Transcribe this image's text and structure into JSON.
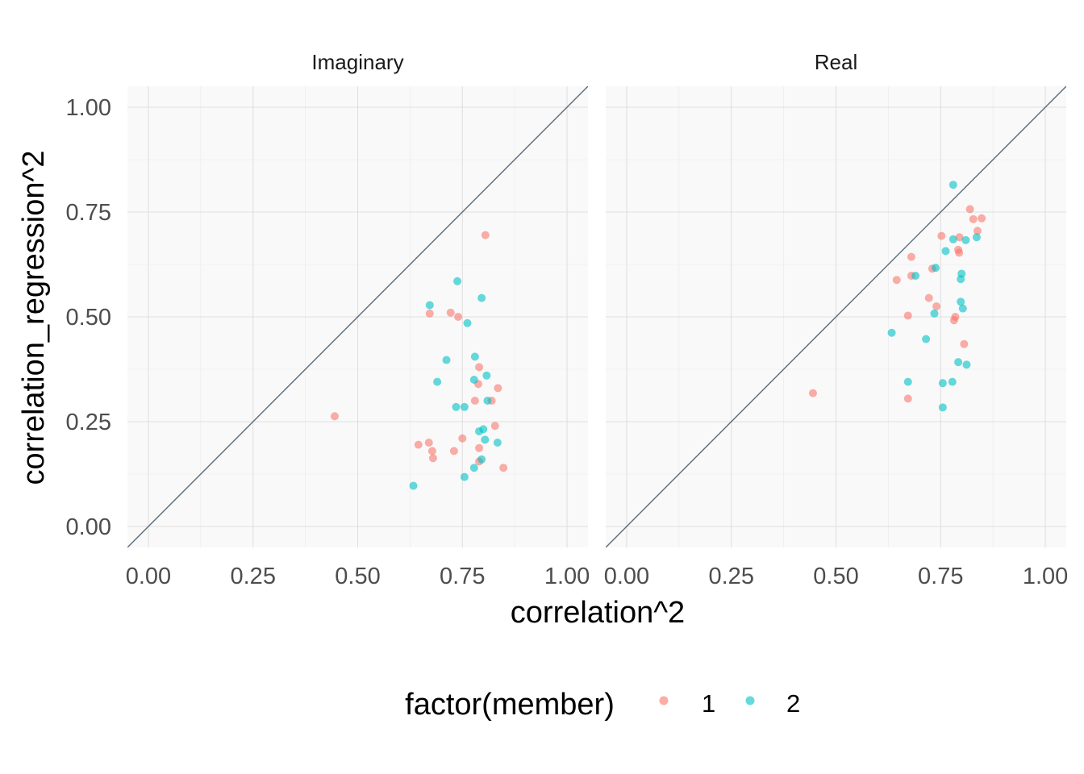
{
  "chart_data": {
    "type": "scatter",
    "xlabel": "correlation^2",
    "ylabel": "correlation_regression^2",
    "xlim": [
      -0.05,
      1.05
    ],
    "ylim": [
      -0.05,
      1.05
    ],
    "x_ticks": [
      0,
      0.25,
      0.5,
      0.75,
      1
    ],
    "y_ticks": [
      0,
      0.25,
      0.5,
      0.75,
      1
    ],
    "x_tick_labels": [
      "0.00",
      "0.25",
      "0.50",
      "0.75",
      "1.00"
    ],
    "y_tick_labels": [
      "0.00",
      "0.25",
      "0.50",
      "0.75",
      "1.00"
    ],
    "grid": true,
    "reference_line": "y = x",
    "legend": {
      "title": "factor(member)",
      "position": "bottom",
      "entries": [
        {
          "label": "1",
          "color": "#F8766D"
        },
        {
          "label": "2",
          "color": "#00BFC4"
        }
      ]
    },
    "facets": [
      {
        "label": "Imaginary",
        "series": [
          {
            "name": "1",
            "color": "#F8766D",
            "points": [
              [
                0.805,
                0.695
              ],
              [
                0.445,
                0.263
              ],
              [
                0.672,
                0.508
              ],
              [
                0.722,
                0.51
              ],
              [
                0.74,
                0.5
              ],
              [
                0.79,
                0.38
              ],
              [
                0.788,
                0.34
              ],
              [
                0.835,
                0.33
              ],
              [
                0.78,
                0.3
              ],
              [
                0.82,
                0.3
              ],
              [
                0.828,
                0.24
              ],
              [
                0.75,
                0.21
              ],
              [
                0.645,
                0.195
              ],
              [
                0.67,
                0.2
              ],
              [
                0.678,
                0.18
              ],
              [
                0.73,
                0.18
              ],
              [
                0.79,
                0.187
              ],
              [
                0.68,
                0.163
              ],
              [
                0.79,
                0.155
              ],
              [
                0.848,
                0.14
              ]
            ]
          },
          {
            "name": "2",
            "color": "#00BFC4",
            "points": [
              [
                0.738,
                0.585
              ],
              [
                0.672,
                0.528
              ],
              [
                0.796,
                0.545
              ],
              [
                0.762,
                0.485
              ],
              [
                0.78,
                0.405
              ],
              [
                0.712,
                0.397
              ],
              [
                0.808,
                0.36
              ],
              [
                0.778,
                0.35
              ],
              [
                0.69,
                0.345
              ],
              [
                0.81,
                0.3
              ],
              [
                0.735,
                0.285
              ],
              [
                0.755,
                0.285
              ],
              [
                0.8,
                0.232
              ],
              [
                0.79,
                0.227
              ],
              [
                0.834,
                0.2
              ],
              [
                0.804,
                0.207
              ],
              [
                0.796,
                0.16
              ],
              [
                0.778,
                0.14
              ],
              [
                0.755,
                0.118
              ],
              [
                0.633,
                0.097
              ]
            ]
          }
        ]
      },
      {
        "label": "Real",
        "series": [
          {
            "name": "1",
            "color": "#F8766D",
            "points": [
              [
                0.82,
                0.757
              ],
              [
                0.828,
                0.733
              ],
              [
                0.848,
                0.735
              ],
              [
                0.838,
                0.705
              ],
              [
                0.752,
                0.693
              ],
              [
                0.795,
                0.69
              ],
              [
                0.792,
                0.66
              ],
              [
                0.794,
                0.653
              ],
              [
                0.68,
                0.643
              ],
              [
                0.73,
                0.615
              ],
              [
                0.68,
                0.598
              ],
              [
                0.645,
                0.588
              ],
              [
                0.722,
                0.545
              ],
              [
                0.74,
                0.525
              ],
              [
                0.672,
                0.503
              ],
              [
                0.785,
                0.5
              ],
              [
                0.782,
                0.492
              ],
              [
                0.806,
                0.435
              ],
              [
                0.445,
                0.318
              ],
              [
                0.672,
                0.305
              ]
            ]
          },
          {
            "name": "2",
            "color": "#00BFC4",
            "points": [
              [
                0.78,
                0.815
              ],
              [
                0.78,
                0.685
              ],
              [
                0.81,
                0.683
              ],
              [
                0.836,
                0.69
              ],
              [
                0.762,
                0.657
              ],
              [
                0.738,
                0.617
              ],
              [
                0.69,
                0.598
              ],
              [
                0.8,
                0.603
              ],
              [
                0.798,
                0.59
              ],
              [
                0.798,
                0.536
              ],
              [
                0.803,
                0.52
              ],
              [
                0.735,
                0.508
              ],
              [
                0.633,
                0.462
              ],
              [
                0.715,
                0.447
              ],
              [
                0.792,
                0.392
              ],
              [
                0.812,
                0.386
              ],
              [
                0.672,
                0.345
              ],
              [
                0.755,
                0.342
              ],
              [
                0.778,
                0.345
              ],
              [
                0.755,
                0.284
              ]
            ]
          }
        ]
      }
    ]
  }
}
